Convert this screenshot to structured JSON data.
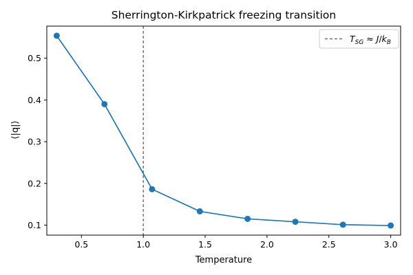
{
  "chart_data": {
    "type": "line",
    "title": "Sherrington-Kirkpatrick freezing transition",
    "xlabel": "Temperature",
    "ylabel": "⟨|q|⟩",
    "xlim": [
      0.22,
      3.08
    ],
    "ylim": [
      0.076,
      0.577
    ],
    "xticks": [
      0.5,
      1.0,
      1.5,
      2.0,
      2.5,
      3.0
    ],
    "xtick_labels": [
      "0.5",
      "1.0",
      "1.5",
      "2.0",
      "2.5",
      "3.0"
    ],
    "yticks": [
      0.1,
      0.2,
      0.3,
      0.4,
      0.5
    ],
    "ytick_labels": [
      "0.1",
      "0.2",
      "0.3",
      "0.4",
      "0.5"
    ],
    "grid": false,
    "legend_position": "top-right",
    "series": [
      {
        "color": "#1f77b4",
        "marker": "circle",
        "x": [
          0.3,
          0.686,
          1.071,
          1.457,
          1.843,
          2.229,
          2.614,
          3.0
        ],
        "y": [
          0.554,
          0.39,
          0.186,
          0.133,
          0.115,
          0.108,
          0.101,
          0.099
        ]
      }
    ],
    "reference_line": {
      "orientation": "vertical",
      "x": 1.0,
      "style": "dashed",
      "color": "#555555",
      "legend_label": {
        "t": "T",
        "t_sub": "SG",
        "approx": " ≈ ",
        "j": "J",
        "slash": "/",
        "k": "k",
        "k_sub": "B"
      }
    }
  }
}
